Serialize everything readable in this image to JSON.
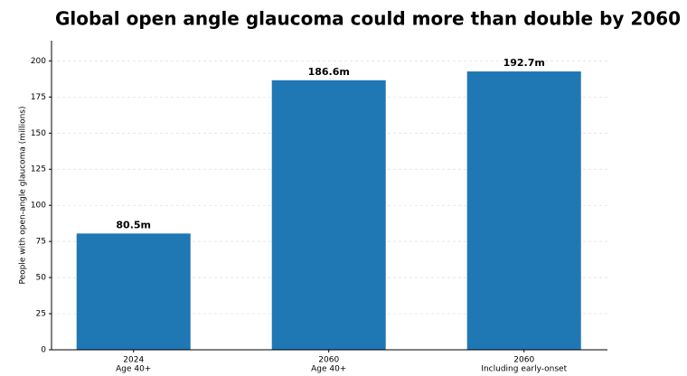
{
  "chart_data": {
    "type": "bar",
    "title": "Global open angle glaucoma could more than double by 2060",
    "y_label": "People with open-angle glaucoma (millions)",
    "categories": [
      [
        "2024",
        "Age 40+"
      ],
      [
        "2060",
        "Age 40+"
      ],
      [
        "2060",
        "Including early-onset"
      ]
    ],
    "values": [
      80.5,
      186.6,
      192.7
    ],
    "value_labels": [
      "80.5m",
      "186.6m",
      "192.7m"
    ],
    "color": "#1f77b4",
    "ylim": [
      0,
      214
    ],
    "yticks": [
      0,
      25,
      50,
      75,
      100,
      125,
      150,
      175,
      200
    ],
    "grid": true
  }
}
